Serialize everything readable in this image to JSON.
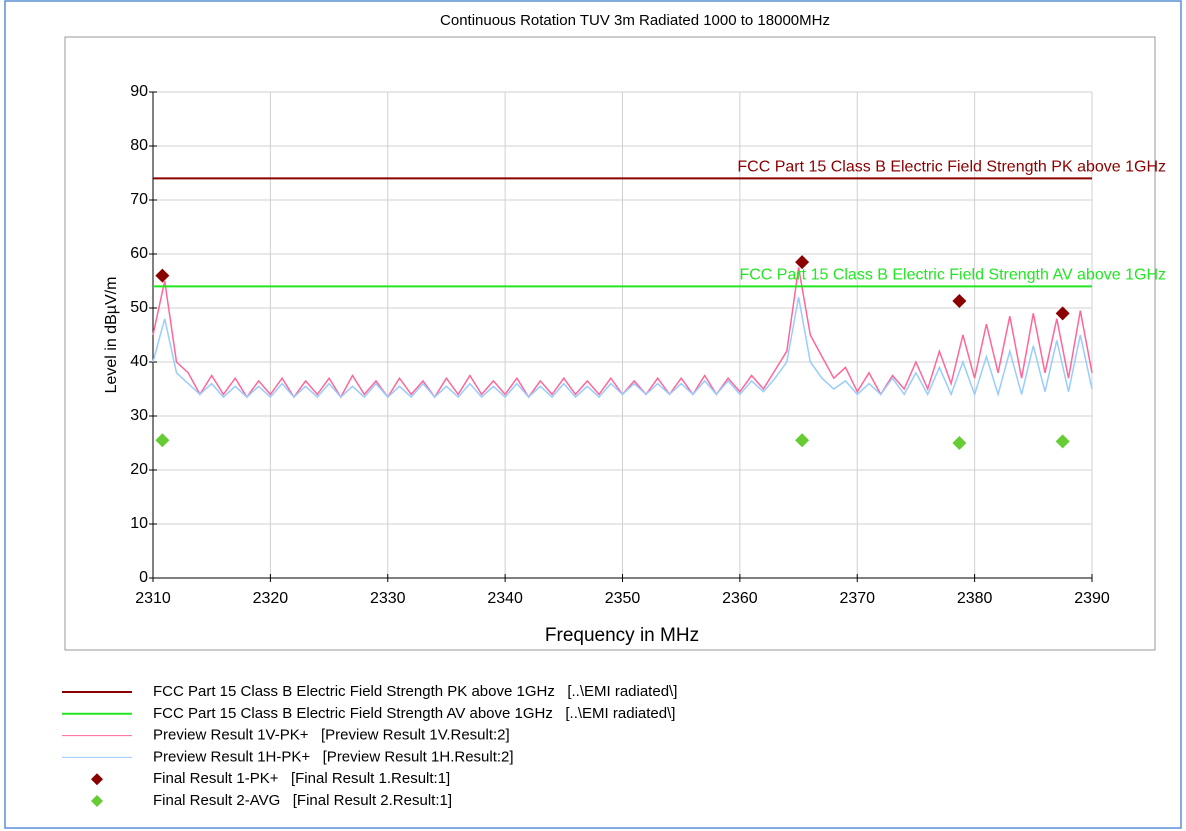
{
  "chart_data": {
    "type": "line",
    "title": "Continuous Rotation TUV 3m Radiated 1000 to 18000MHz",
    "x_label": "Frequency in MHz",
    "y_label": "Level in dBµV/m",
    "xlim": [
      2310,
      2390
    ],
    "ylim": [
      0,
      90
    ],
    "xticks": [
      2310,
      2320,
      2330,
      2340,
      2350,
      2360,
      2370,
      2380,
      2390
    ],
    "yticks": [
      0,
      10,
      20,
      30,
      40,
      50,
      60,
      70,
      80,
      90
    ],
    "grid": true,
    "limits": [
      {
        "name": "FCC Part 15 Class B Electric Field Strength PK above 1GHz   [..\\EMI radiated\\]",
        "label": "FCC Part 15 Class B Electric Field Strength PK above 1GHz",
        "value": 74,
        "color": "#8b0000"
      },
      {
        "name": "FCC Part 15 Class B Electric Field Strength AV above 1GHz   [..\\EMI radiated\\]",
        "label": "FCC Part 15 Class B Electric Field Strength AV above 1GHz",
        "value": 54,
        "color": "#22e622"
      }
    ],
    "x": [
      2310,
      2311,
      2312,
      2313,
      2314,
      2315,
      2316,
      2317,
      2318,
      2319,
      2320,
      2321,
      2322,
      2323,
      2324,
      2325,
      2326,
      2327,
      2328,
      2329,
      2330,
      2331,
      2332,
      2333,
      2334,
      2335,
      2336,
      2337,
      2338,
      2339,
      2340,
      2341,
      2342,
      2343,
      2344,
      2345,
      2346,
      2347,
      2348,
      2349,
      2350,
      2351,
      2352,
      2353,
      2354,
      2355,
      2356,
      2357,
      2358,
      2359,
      2360,
      2361,
      2362,
      2363,
      2364,
      2365,
      2366,
      2367,
      2368,
      2369,
      2370,
      2371,
      2372,
      2373,
      2374,
      2375,
      2376,
      2377,
      2378,
      2379,
      2380,
      2381,
      2382,
      2383,
      2384,
      2385,
      2386,
      2387,
      2388,
      2389,
      2390
    ],
    "series": [
      {
        "name": "Preview Result 1V-PK+   [Preview Result 1V.Result:2]",
        "color": "#ff6699",
        "values": [
          45,
          55,
          40,
          38,
          34,
          37.5,
          34,
          37,
          33.5,
          36.5,
          34,
          37,
          33.5,
          36.5,
          34,
          37,
          33.5,
          37.5,
          34,
          36.5,
          33.5,
          37,
          34,
          36.5,
          33.5,
          37,
          34,
          37.5,
          34,
          36.5,
          34,
          37,
          33.5,
          36.5,
          34,
          37,
          34,
          36.5,
          34,
          37,
          34,
          36.5,
          34,
          37,
          34,
          37,
          34,
          37.5,
          34,
          37,
          34.5,
          37.5,
          35,
          38.5,
          42,
          57.5,
          45,
          41,
          37,
          39,
          34.5,
          38,
          34,
          37.5,
          35,
          40,
          35,
          42,
          36,
          45,
          37,
          47,
          38,
          48.5,
          37,
          49,
          38,
          48,
          37,
          49.5,
          38
        ]
      },
      {
        "name": "Preview Result 1H-PK+   [Preview Result 1H.Result:2]",
        "color": "#99ccff",
        "values": [
          40,
          48,
          38,
          36,
          34,
          36,
          33.5,
          35.5,
          33.5,
          35.5,
          33.5,
          36,
          33.5,
          35.5,
          33.5,
          36,
          33.5,
          35.5,
          33.5,
          36,
          33.5,
          35.5,
          33.5,
          36,
          33.5,
          35.5,
          33.5,
          36,
          33.5,
          35.5,
          33.5,
          36,
          33.5,
          35.5,
          33.5,
          36,
          33.5,
          35.5,
          33.5,
          36,
          34,
          36,
          34,
          36,
          34,
          36,
          34,
          36.5,
          34,
          36.5,
          34,
          36.5,
          34.5,
          37,
          40,
          52,
          40,
          37,
          35,
          36.5,
          34,
          36,
          34,
          37,
          34,
          38,
          34,
          39,
          34,
          40,
          34,
          41,
          34,
          42,
          34,
          43,
          34.5,
          44,
          34.5,
          45,
          35
        ]
      }
    ],
    "markers": [
      {
        "name": "Final Result 1-PK+   [Final Result 1.Result:1]",
        "color": "#8b0000",
        "x": [
          2310.8,
          2365.3,
          2378.7,
          2387.5
        ],
        "values": [
          56,
          58.5,
          51.3,
          49
        ]
      },
      {
        "name": "Final Result 2-AVG   [Final Result 2.Result:1]",
        "color": "#66cc33",
        "x": [
          2310.8,
          2365.3,
          2378.7,
          2387.5
        ],
        "values": [
          25.5,
          25.5,
          25,
          25.3
        ]
      }
    ]
  }
}
